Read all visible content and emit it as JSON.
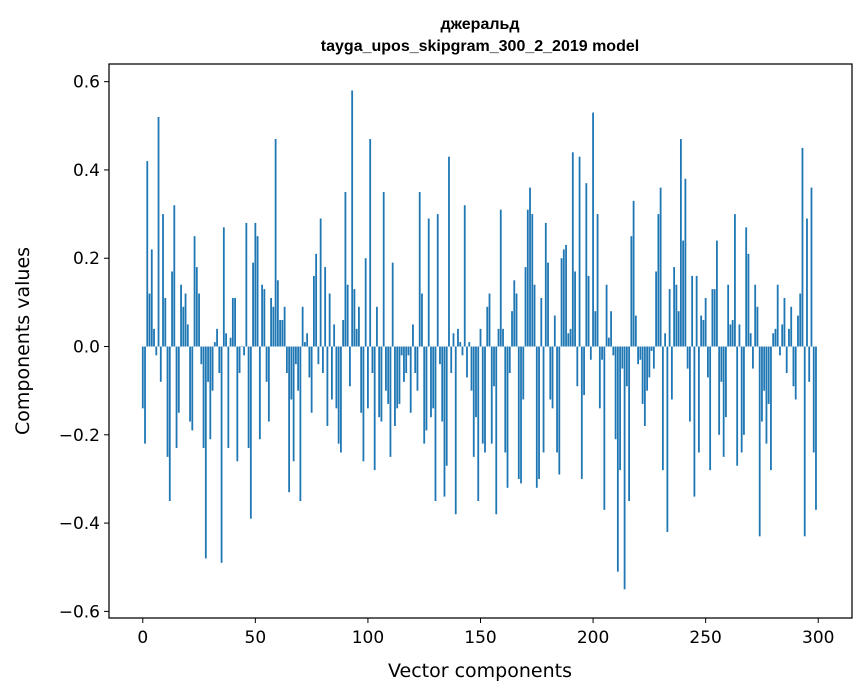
{
  "chart_data": {
    "type": "bar",
    "title": "джеральд",
    "subtitle": "tayga_upos_skipgram_300_2_2019 model",
    "xlabel": "Vector components",
    "ylabel": "Components values",
    "xlim": [
      -15,
      315
    ],
    "ylim": [
      -0.615,
      0.64
    ],
    "xticks": [
      0,
      50,
      100,
      150,
      200,
      250,
      300
    ],
    "xtick_labels": [
      "0",
      "50",
      "100",
      "150",
      "200",
      "250",
      "300"
    ],
    "yticks": [
      -0.6,
      -0.4,
      -0.2,
      0.0,
      0.2,
      0.4,
      0.6
    ],
    "ytick_labels": [
      "−0.6",
      "−0.4",
      "−0.2",
      "0.0",
      "0.2",
      "0.4",
      "0.6"
    ],
    "grid": false,
    "legend": "none",
    "bar_color": "#1f77b4",
    "x": "indices 0..299",
    "values": [
      -0.14,
      -0.22,
      0.42,
      0.12,
      0.22,
      0.04,
      -0.02,
      0.52,
      -0.08,
      0.3,
      0.11,
      -0.25,
      -0.35,
      0.17,
      0.32,
      -0.23,
      -0.15,
      0.14,
      0.09,
      0.12,
      0.05,
      -0.17,
      -0.19,
      0.25,
      0.18,
      0.12,
      -0.04,
      -0.23,
      -0.48,
      -0.08,
      -0.21,
      -0.1,
      0.01,
      0.04,
      -0.06,
      -0.49,
      0.27,
      0.03,
      -0.23,
      0.02,
      0.11,
      0.11,
      -0.26,
      -0.06,
      0.0,
      -0.02,
      0.28,
      -0.23,
      -0.39,
      0.19,
      0.28,
      0.25,
      -0.21,
      0.14,
      0.13,
      -0.08,
      -0.17,
      0.11,
      0.09,
      0.47,
      0.15,
      0.06,
      0.06,
      0.09,
      -0.06,
      -0.33,
      -0.12,
      -0.26,
      -0.04,
      -0.1,
      -0.35,
      0.09,
      0.01,
      0.03,
      -0.07,
      -0.15,
      0.16,
      0.21,
      -0.04,
      0.29,
      -0.06,
      0.18,
      -0.18,
      0.12,
      -0.12,
      0.05,
      -0.14,
      -0.22,
      -0.24,
      0.06,
      0.35,
      0.14,
      -0.09,
      0.58,
      0.13,
      0.04,
      0.09,
      -0.15,
      -0.26,
      0.2,
      -0.14,
      0.47,
      -0.06,
      -0.28,
      0.09,
      -0.16,
      -0.17,
      0.35,
      -0.1,
      -0.13,
      -0.25,
      0.19,
      -0.18,
      -0.14,
      -0.13,
      -0.02,
      -0.08,
      -0.06,
      -0.02,
      -0.15,
      0.05,
      -0.06,
      -0.1,
      0.35,
      0.12,
      -0.22,
      -0.19,
      0.29,
      -0.16,
      -0.14,
      -0.35,
      0.3,
      -0.04,
      -0.17,
      -0.34,
      -0.27,
      0.43,
      -0.06,
      0.03,
      -0.38,
      0.04,
      0.01,
      -0.02,
      0.32,
      -0.07,
      0.01,
      -0.1,
      -0.25,
      -0.16,
      -0.35,
      0.04,
      -0.22,
      -0.24,
      0.09,
      0.12,
      -0.22,
      -0.09,
      -0.38,
      0.04,
      0.31,
      0.04,
      -0.24,
      -0.32,
      -0.06,
      0.08,
      0.15,
      0.12,
      -0.3,
      -0.31,
      -0.12,
      0.18,
      0.31,
      0.36,
      0.3,
      0.14,
      -0.32,
      -0.3,
      0.11,
      -0.24,
      0.28,
      0.19,
      -0.12,
      -0.14,
      0.07,
      -0.24,
      -0.29,
      0.2,
      0.22,
      0.23,
      0.03,
      0.04,
      0.44,
      0.17,
      -0.09,
      0.43,
      -0.3,
      -0.11,
      0.37,
      0.16,
      -0.03,
      0.53,
      0.08,
      0.3,
      -0.14,
      -0.03,
      -0.37,
      0.14,
      0.02,
      0.08,
      -0.02,
      -0.21,
      -0.51,
      -0.28,
      -0.05,
      -0.55,
      -0.09,
      -0.35,
      0.25,
      0.33,
      0.07,
      -0.04,
      -0.03,
      -0.13,
      -0.18,
      -0.1,
      -0.07,
      -0.01,
      -0.05,
      0.17,
      0.3,
      0.36,
      -0.28,
      0.03,
      -0.42,
      0.13,
      -0.12,
      0.18,
      0.14,
      0.08,
      0.47,
      0.24,
      0.38,
      -0.05,
      -0.17,
      0.16,
      -0.34,
      0.16,
      -0.24,
      0.07,
      0.06,
      0.11,
      -0.07,
      -0.28,
      0.13,
      0.13,
      0.24,
      -0.2,
      -0.08,
      -0.25,
      -0.16,
      0.14,
      0.05,
      0.06,
      0.3,
      -0.27,
      0.05,
      -0.24,
      -0.2,
      0.27,
      0.21,
      0.03,
      -0.05,
      0.14,
      0.09,
      -0.43,
      -0.17,
      -0.1,
      -0.22,
      -0.13,
      -0.28,
      0.03,
      0.04,
      0.14,
      -0.02,
      0.05,
      0.11,
      -0.06,
      0.04,
      0.09,
      -0.09,
      -0.12,
      0.07,
      0.12,
      0.45,
      -0.43,
      0.29,
      -0.08,
      0.36,
      -0.24,
      -0.37
    ]
  }
}
